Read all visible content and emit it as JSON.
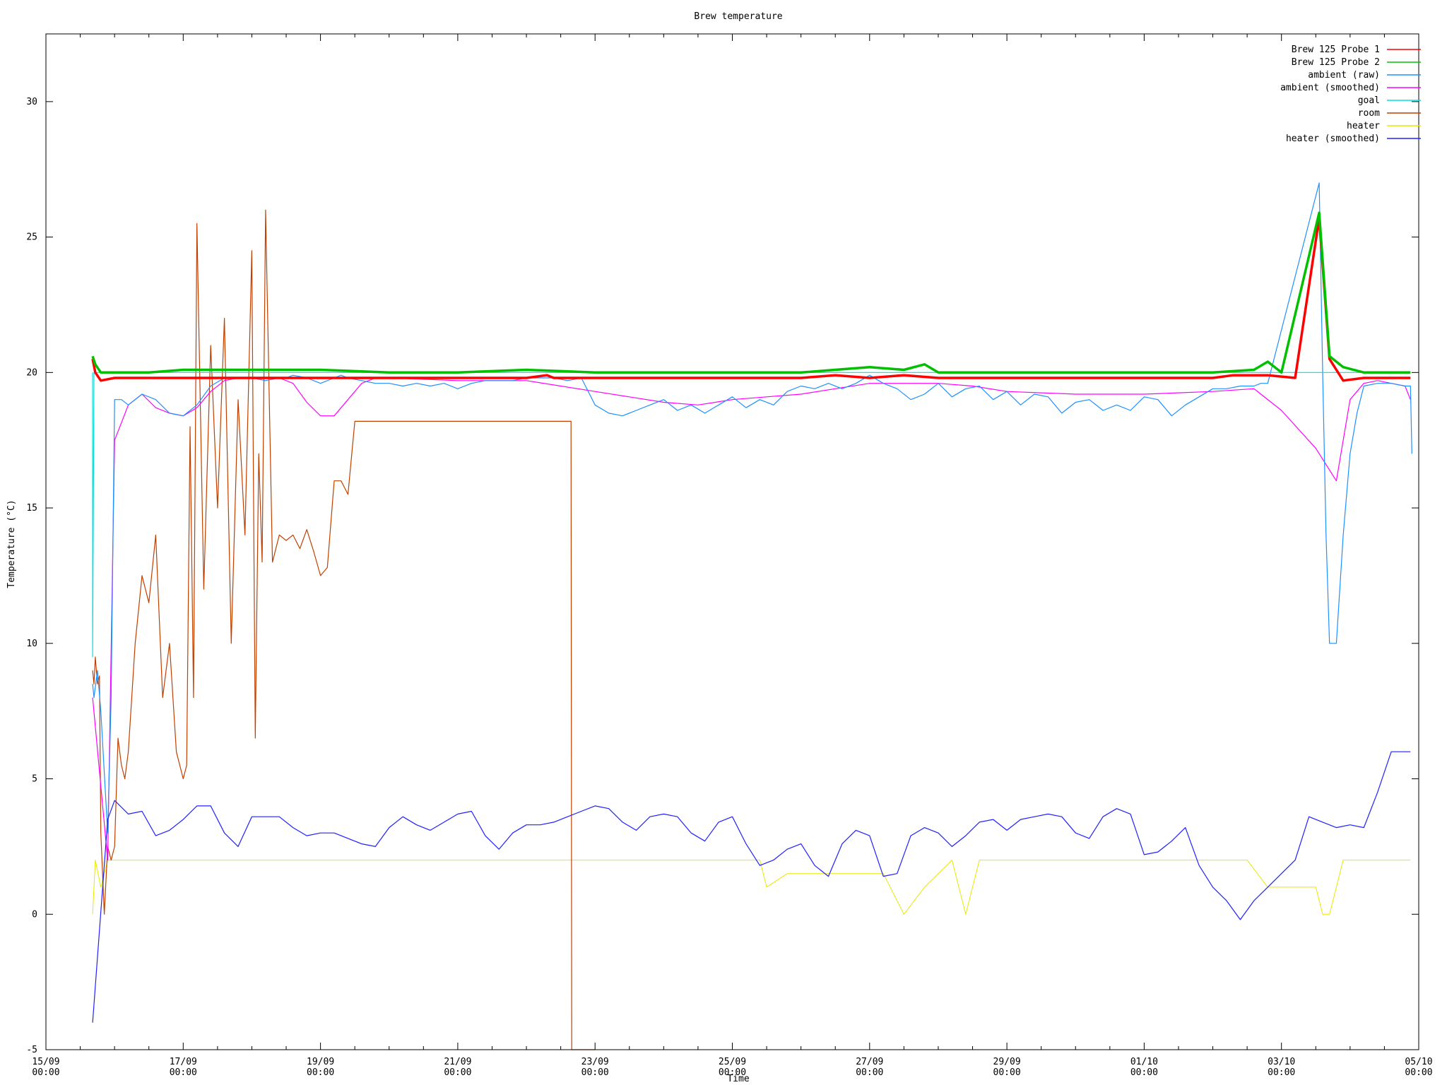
{
  "chart_data": {
    "type": "line",
    "title": "Brew temperature",
    "xlabel": "Time",
    "ylabel": "Temperature (°C)",
    "ylim": [
      -5,
      32.5
    ],
    "xlim": [
      0,
      20
    ],
    "yticks": [
      -5,
      0,
      5,
      10,
      15,
      20,
      25,
      30
    ],
    "xticks": [
      {
        "value": 0,
        "label": "15/09\n00:00"
      },
      {
        "value": 2,
        "label": "17/09\n00:00"
      },
      {
        "value": 4,
        "label": "19/09\n00:00"
      },
      {
        "value": 6,
        "label": "21/09\n00:00"
      },
      {
        "value": 8,
        "label": "23/09\n00:00"
      },
      {
        "value": 10,
        "label": "25/09\n00:00"
      },
      {
        "value": 12,
        "label": "27/09\n00:00"
      },
      {
        "value": 14,
        "label": "29/09\n00:00"
      },
      {
        "value": 16,
        "label": "01/10\n00:00"
      },
      {
        "value": 18,
        "label": "03/10\n00:00"
      },
      {
        "value": 20,
        "label": "05/10\n00:00"
      }
    ],
    "legend_position": "top-right",
    "grid": false,
    "series": [
      {
        "name": "Brew 125 Probe 1",
        "color": "#ff0000",
        "x": [
          0.68,
          0.72,
          0.8,
          1.0,
          1.5,
          2.0,
          3.0,
          4.0,
          5.0,
          6.0,
          7.0,
          7.3,
          7.4,
          8.0,
          9.0,
          10.0,
          11.0,
          11.5,
          12.0,
          12.5,
          13.0,
          14.0,
          15.0,
          16.0,
          17.0,
          17.3,
          17.8,
          18.2,
          18.55,
          18.7,
          18.9,
          19.2,
          19.5,
          19.88
        ],
        "y": [
          20.5,
          20.0,
          19.7,
          19.8,
          19.8,
          19.8,
          19.8,
          19.8,
          19.8,
          19.8,
          19.8,
          19.9,
          19.8,
          19.8,
          19.8,
          19.8,
          19.8,
          19.9,
          19.8,
          19.9,
          19.8,
          19.8,
          19.8,
          19.8,
          19.8,
          19.9,
          19.9,
          19.8,
          25.7,
          20.5,
          19.7,
          19.8,
          19.8,
          19.8
        ]
      },
      {
        "name": "Brew 125 Probe 2",
        "color": "#00c000",
        "x": [
          0.68,
          0.72,
          0.8,
          1.0,
          1.5,
          2.0,
          3.0,
          4.0,
          5.0,
          6.0,
          7.0,
          8.0,
          9.0,
          10.0,
          11.0,
          11.5,
          12.0,
          12.5,
          12.8,
          13.0,
          14.0,
          15.0,
          16.0,
          17.0,
          17.6,
          17.8,
          18.0,
          18.55,
          18.7,
          18.9,
          19.2,
          19.5,
          19.88
        ],
        "y": [
          20.6,
          20.3,
          20.0,
          20.0,
          20.0,
          20.1,
          20.1,
          20.1,
          20.0,
          20.0,
          20.1,
          20.0,
          20.0,
          20.0,
          20.0,
          20.1,
          20.2,
          20.1,
          20.3,
          20.0,
          20.0,
          20.0,
          20.0,
          20.0,
          20.1,
          20.4,
          20.0,
          25.9,
          20.6,
          20.2,
          20.0,
          20.0,
          20.0
        ]
      },
      {
        "name": "ambient (raw)",
        "color": "#1e90ff",
        "x": [
          0.68,
          0.7,
          0.75,
          0.8,
          0.9,
          0.95,
          1.0,
          1.1,
          1.2,
          1.4,
          1.6,
          1.8,
          2.0,
          2.2,
          2.4,
          2.6,
          2.8,
          3.0,
          3.2,
          3.4,
          3.5,
          3.6,
          3.8,
          4.0,
          4.2,
          4.3,
          4.4,
          4.6,
          4.8,
          5.0,
          5.2,
          5.4,
          5.6,
          5.8,
          6.0,
          6.2,
          6.4,
          6.6,
          6.8,
          7.0,
          7.2,
          7.4,
          7.6,
          7.8,
          8.0,
          8.2,
          8.4,
          8.6,
          8.8,
          9.0,
          9.2,
          9.4,
          9.6,
          9.8,
          10.0,
          10.2,
          10.4,
          10.6,
          10.8,
          11.0,
          11.2,
          11.4,
          11.6,
          11.8,
          12.0,
          12.2,
          12.4,
          12.6,
          12.8,
          13.0,
          13.2,
          13.4,
          13.6,
          13.8,
          14.0,
          14.2,
          14.4,
          14.6,
          14.8,
          15.0,
          15.2,
          15.4,
          15.6,
          15.8,
          16.0,
          16.2,
          16.4,
          16.6,
          16.8,
          17.0,
          17.2,
          17.4,
          17.6,
          17.7,
          17.8,
          18.55,
          18.6,
          18.65,
          18.7,
          18.8,
          18.9,
          19.0,
          19.1,
          19.2,
          19.4,
          19.6,
          19.8,
          19.88,
          19.9
        ],
        "y": [
          8.5,
          8.0,
          9.0,
          7.5,
          3.0,
          8.0,
          19.0,
          19.0,
          18.8,
          19.2,
          19.0,
          18.5,
          18.4,
          18.8,
          19.5,
          19.8,
          19.8,
          19.8,
          19.7,
          19.8,
          19.8,
          19.9,
          19.8,
          19.6,
          19.8,
          19.9,
          19.8,
          19.7,
          19.6,
          19.6,
          19.5,
          19.6,
          19.5,
          19.6,
          19.4,
          19.6,
          19.7,
          19.7,
          19.7,
          19.8,
          19.8,
          19.8,
          19.7,
          19.8,
          18.8,
          18.5,
          18.4,
          18.6,
          18.8,
          19.0,
          18.6,
          18.8,
          18.5,
          18.8,
          19.1,
          18.7,
          19.0,
          18.8,
          19.3,
          19.5,
          19.4,
          19.6,
          19.4,
          19.6,
          19.9,
          19.6,
          19.4,
          19.0,
          19.2,
          19.6,
          19.1,
          19.4,
          19.5,
          19.0,
          19.3,
          18.8,
          19.2,
          19.1,
          18.5,
          18.9,
          19.0,
          18.6,
          18.8,
          18.6,
          19.1,
          19.0,
          18.4,
          18.8,
          19.1,
          19.4,
          19.4,
          19.5,
          19.5,
          19.6,
          19.6,
          27.0,
          20.0,
          14.0,
          10.0,
          10.0,
          14.0,
          17.0,
          18.5,
          19.5,
          19.6,
          19.6,
          19.5,
          19.5,
          17.0
        ]
      },
      {
        "name": "ambient (smoothed)",
        "color": "#ff00ff",
        "x": [
          0.68,
          0.9,
          1.0,
          1.2,
          1.4,
          1.6,
          1.8,
          2.0,
          2.2,
          2.4,
          2.6,
          2.8,
          3.0,
          3.2,
          3.4,
          3.6,
          3.8,
          4.0,
          4.2,
          4.4,
          4.6,
          4.8,
          5.0,
          6.0,
          7.0,
          8.0,
          9.0,
          9.5,
          10.0,
          10.5,
          11.0,
          11.5,
          12.0,
          12.5,
          13.0,
          13.5,
          14.0,
          15.0,
          16.0,
          17.0,
          17.6,
          18.0,
          18.5,
          18.8,
          19.0,
          19.2,
          19.4,
          19.6,
          19.8,
          19.88
        ],
        "y": [
          8.0,
          2.0,
          17.5,
          18.8,
          19.2,
          18.7,
          18.5,
          18.4,
          18.7,
          19.3,
          19.7,
          19.8,
          19.8,
          19.8,
          19.8,
          19.6,
          18.9,
          18.4,
          18.4,
          19.0,
          19.6,
          19.8,
          19.8,
          19.7,
          19.7,
          19.3,
          18.9,
          18.8,
          19.0,
          19.1,
          19.2,
          19.4,
          19.6,
          19.6,
          19.6,
          19.5,
          19.3,
          19.2,
          19.2,
          19.3,
          19.4,
          18.6,
          17.2,
          16.0,
          19.0,
          19.6,
          19.7,
          19.6,
          19.5,
          19.0
        ]
      },
      {
        "name": "goal",
        "color": "#00e0e0",
        "x": [
          0.68,
          0.68,
          0.7,
          18.55,
          18.7,
          19.88
        ],
        "y": [
          20.0,
          9.5,
          20.0,
          20.0,
          20.0,
          20.0
        ]
      },
      {
        "name": "room",
        "color": "#c04000",
        "x": [
          0.68,
          0.7,
          0.72,
          0.75,
          0.78,
          0.8,
          0.85,
          0.9,
          0.95,
          1.0,
          1.05,
          1.1,
          1.15,
          1.2,
          1.3,
          1.4,
          1.5,
          1.6,
          1.7,
          1.8,
          1.9,
          2.0,
          2.05,
          2.1,
          2.15,
          2.2,
          2.3,
          2.4,
          2.5,
          2.6,
          2.7,
          2.8,
          2.9,
          3.0,
          3.05,
          3.1,
          3.15,
          3.2,
          3.3,
          3.4,
          3.5,
          3.6,
          3.7,
          3.8,
          3.9,
          4.0,
          4.1,
          4.2,
          4.3,
          4.4,
          4.5,
          4.6,
          4.8,
          5.0,
          6.0,
          7.0,
          7.5,
          7.65,
          7.66,
          8.0
        ],
        "y": [
          9.0,
          8.5,
          9.5,
          8.5,
          8.8,
          3.0,
          0.0,
          2.5,
          2.0,
          2.5,
          6.5,
          5.5,
          5.0,
          6.0,
          10.0,
          12.5,
          11.5,
          14.0,
          8.0,
          10.0,
          6.0,
          5.0,
          5.5,
          18.0,
          8.0,
          25.5,
          12.0,
          21.0,
          15.0,
          22.0,
          10.0,
          19.0,
          14.0,
          24.5,
          6.5,
          17.0,
          13.0,
          26.0,
          13.0,
          14.0,
          13.8,
          14.0,
          13.5,
          14.2,
          13.4,
          12.5,
          12.8,
          16.0,
          16.0,
          15.5,
          18.2,
          18.2,
          18.2,
          18.2,
          18.2,
          18.2,
          18.2,
          18.2,
          -5.0,
          -5.0
        ]
      },
      {
        "name": "heater",
        "color": "#e8e800",
        "x": [
          0.68,
          0.7,
          0.72,
          0.8,
          0.9,
          1.5,
          2.5,
          3.5,
          4.5,
          5.5,
          6.5,
          7.5,
          8.5,
          9.5,
          10.4,
          10.5,
          10.8,
          11.2,
          11.8,
          12.2,
          12.5,
          12.8,
          13.2,
          13.4,
          13.6,
          14.0,
          14.5,
          15.0,
          15.5,
          16.0,
          16.5,
          17.0,
          17.5,
          17.8,
          18.0,
          18.5,
          18.6,
          18.7,
          18.8,
          18.9,
          19.2,
          19.5,
          19.88
        ],
        "y": [
          0,
          1,
          2,
          1,
          2,
          2,
          2,
          2,
          2,
          2,
          2,
          2,
          2,
          2,
          2,
          1,
          1.5,
          1.5,
          1.5,
          1.5,
          0,
          1,
          2,
          0,
          2,
          2,
          2,
          2,
          2,
          2,
          2,
          2,
          2,
          1,
          1,
          1,
          0,
          0,
          1,
          2,
          2,
          2,
          2
        ]
      },
      {
        "name": "heater (smoothed)",
        "color": "#2020ff",
        "x": [
          0.68,
          0.9,
          1.0,
          1.2,
          1.4,
          1.6,
          1.8,
          2.0,
          2.2,
          2.4,
          2.6,
          2.8,
          3.0,
          3.2,
          3.4,
          3.6,
          3.8,
          4.0,
          4.2,
          4.4,
          4.6,
          4.8,
          5.0,
          5.2,
          5.4,
          5.6,
          5.8,
          6.0,
          6.2,
          6.4,
          6.6,
          6.8,
          7.0,
          7.2,
          7.4,
          7.6,
          7.8,
          8.0,
          8.2,
          8.4,
          8.6,
          8.8,
          9.0,
          9.2,
          9.4,
          9.6,
          9.8,
          10.0,
          10.2,
          10.4,
          10.6,
          10.8,
          11.0,
          11.2,
          11.4,
          11.6,
          11.8,
          12.0,
          12.2,
          12.4,
          12.6,
          12.8,
          13.0,
          13.2,
          13.4,
          13.6,
          13.8,
          14.0,
          14.2,
          14.4,
          14.6,
          14.8,
          15.0,
          15.2,
          15.4,
          15.6,
          15.8,
          16.0,
          16.2,
          16.4,
          16.6,
          16.8,
          17.0,
          17.2,
          17.4,
          17.6,
          17.8,
          18.0,
          18.2,
          18.4,
          18.6,
          18.8,
          19.0,
          19.2,
          19.4,
          19.6,
          19.8,
          19.88
        ],
        "y": [
          -4.0,
          3.5,
          4.2,
          3.7,
          3.8,
          2.9,
          3.1,
          3.5,
          4.0,
          4.0,
          3.0,
          2.5,
          3.6,
          3.6,
          3.6,
          3.2,
          2.9,
          3.0,
          3.0,
          2.8,
          2.6,
          2.5,
          3.2,
          3.6,
          3.3,
          3.1,
          3.4,
          3.7,
          3.8,
          2.9,
          2.4,
          3.0,
          3.3,
          3.3,
          3.4,
          3.6,
          3.8,
          4.0,
          3.9,
          3.4,
          3.1,
          3.6,
          3.7,
          3.6,
          3.0,
          2.7,
          3.4,
          3.6,
          2.6,
          1.8,
          2.0,
          2.4,
          2.6,
          1.8,
          1.4,
          2.6,
          3.1,
          2.9,
          1.4,
          1.5,
          2.9,
          3.2,
          3.0,
          2.5,
          2.9,
          3.4,
          3.5,
          3.1,
          3.5,
          3.6,
          3.7,
          3.6,
          3.0,
          2.8,
          3.6,
          3.9,
          3.7,
          2.2,
          2.3,
          2.7,
          3.2,
          1.8,
          1.0,
          0.5,
          -0.2,
          0.5,
          1.0,
          1.5,
          2.0,
          3.6,
          3.4,
          3.2,
          3.3,
          3.2,
          4.5,
          6.0,
          6.0,
          6.0
        ]
      }
    ]
  }
}
